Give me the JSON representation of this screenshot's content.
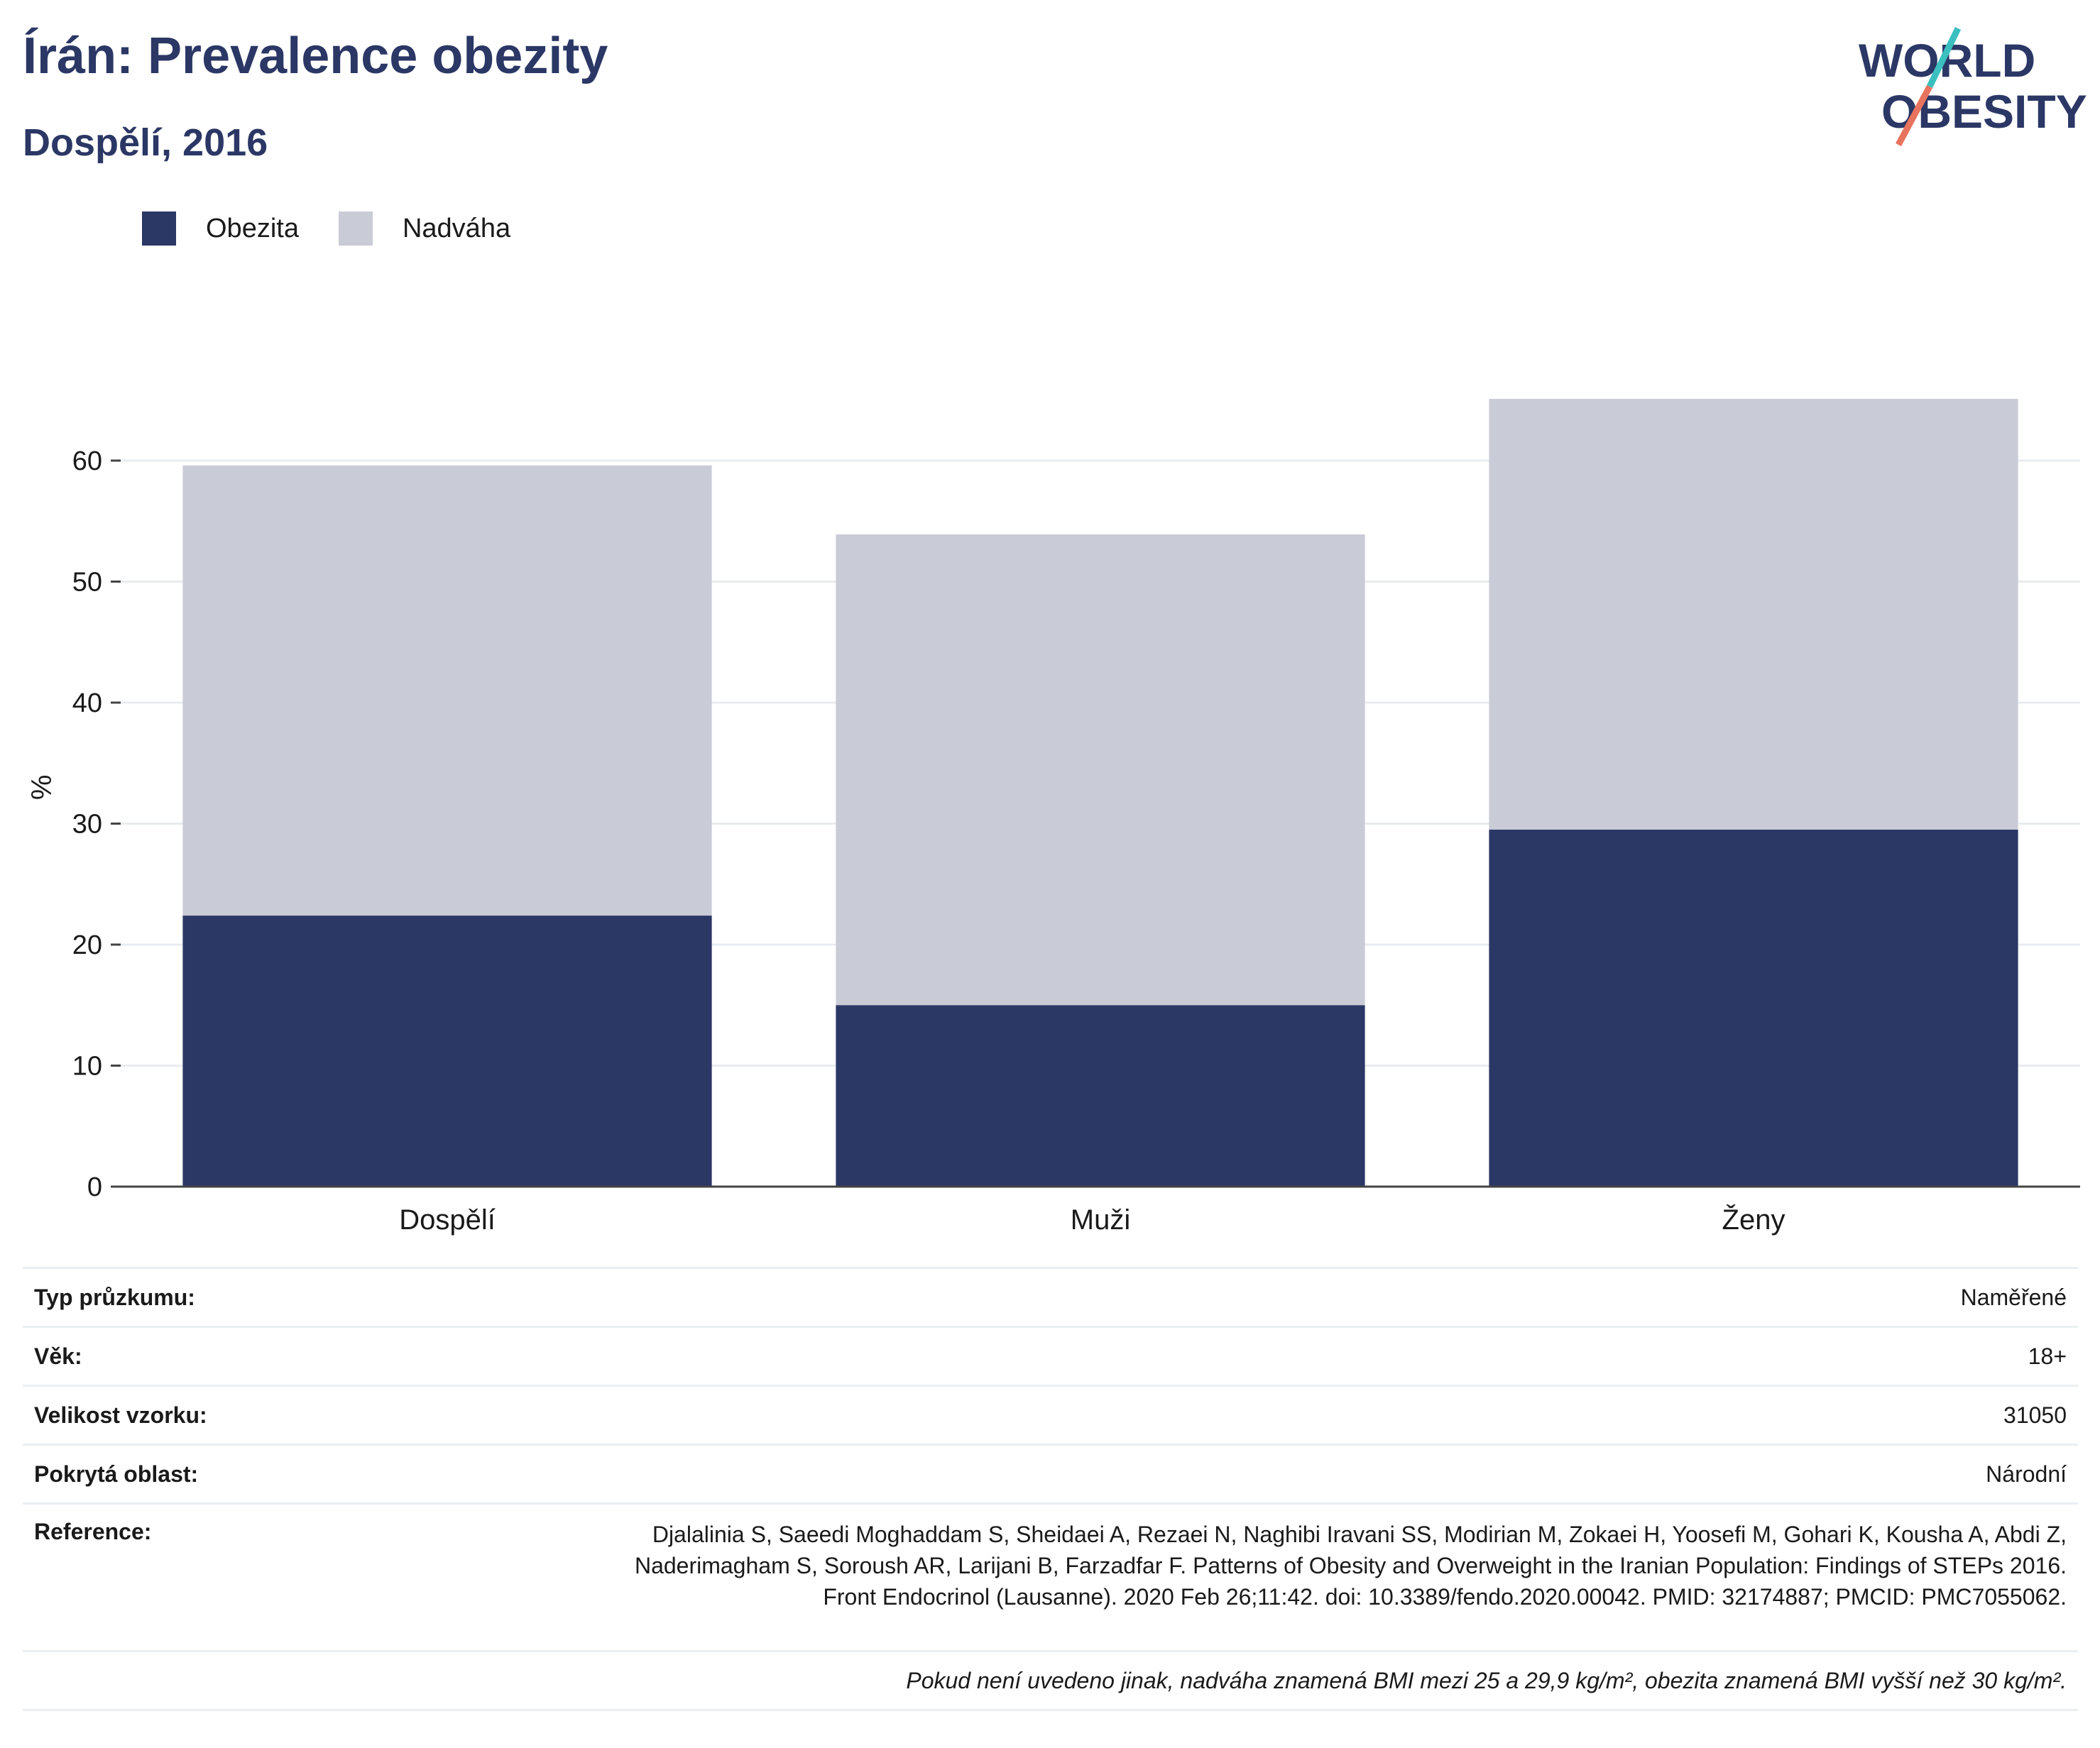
{
  "title": "Írán: Prevalence obezity",
  "subtitle": "Dospělí, 2016",
  "logo": {
    "line1": "WORLD",
    "line2": "OBESITY"
  },
  "legend": {
    "obesity": "Obezita",
    "overweight": "Nadváha"
  },
  "colors": {
    "obesity": "#2b3765",
    "overweight": "#c9cbd6",
    "grid": "#e8ecef",
    "text": "#1a1a1a",
    "logo_teal": "#3bbfbf",
    "logo_coral": "#e8735f"
  },
  "chart_data": {
    "type": "bar",
    "stacked": true,
    "categories": [
      "Dospělí",
      "Muži",
      "Ženy"
    ],
    "series": [
      {
        "name": "Obezita",
        "values": [
          22.4,
          15.0,
          29.5
        ]
      },
      {
        "name": "Nadváha",
        "values": [
          37.2,
          38.9,
          35.6
        ]
      }
    ],
    "totals": [
      59.6,
      53.9,
      65.1
    ],
    "ylabel": "%",
    "ylim": [
      0,
      70
    ],
    "yticks": [
      0,
      10,
      20,
      30,
      40,
      50,
      60
    ],
    "grid": true,
    "legend_position": "top-left"
  },
  "info": {
    "survey_type": {
      "label": "Typ průzkumu:",
      "value": "Naměřené"
    },
    "age": {
      "label": "Věk:",
      "value": "18+"
    },
    "sample_size": {
      "label": "Velikost vzorku:",
      "value": "31050"
    },
    "area": {
      "label": "Pokrytá oblast:",
      "value": "Národní"
    },
    "reference": {
      "label": "Reference:",
      "value": "Djalalinia S, Saeedi Moghaddam S, Sheidaei A, Rezaei N, Naghibi Iravani SS, Modirian M, Zokaei H, Yoosefi M, Gohari K, Kousha A, Abdi Z, Naderimagham S, Soroush AR, Larijani B, Farzadfar F. Patterns of Obesity and Overweight in the Iranian Population: Findings of STEPs 2016. Front Endocrinol (Lausanne). 2020 Feb 26;11:42. doi: 10.3389/fendo.2020.00042. PMID: 32174887; PMCID: PMC7055062."
    }
  },
  "note": "Pokud není uvedeno jinak, nadváha znamená BMI mezi 25 a 29,9 kg/m², obezita znamená BMI vyšší než 30 kg/m²."
}
